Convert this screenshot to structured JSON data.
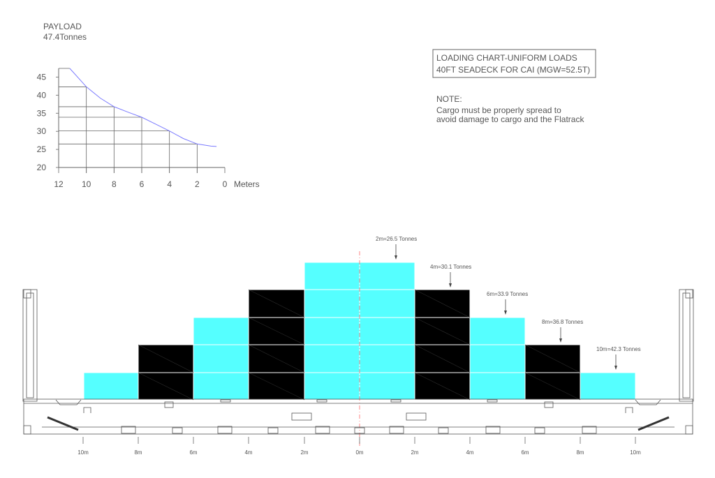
{
  "payload": {
    "title": "PAYLOAD",
    "value": "47.4Tonnes"
  },
  "title_box": {
    "line1": "LOADING CHART-UNIFORM LOADS",
    "line2": "40FT SEADECK FOR CAI (MGW=52.5T)"
  },
  "note": {
    "heading": "NOTE:",
    "line1": "Cargo must be properly spread to",
    "line2": "avoid damage to cargo and the Flatrack"
  },
  "chart_data": {
    "type": "line",
    "x_label": "Meters",
    "x_ticks": [
      "12",
      "10",
      "8",
      "6",
      "4",
      "2",
      "0"
    ],
    "y_ticks": [
      "45",
      "40",
      "35",
      "30",
      "25",
      "20"
    ],
    "xlim": [
      12,
      0
    ],
    "ylim": [
      20,
      47.4
    ],
    "series": [
      {
        "x": [
          11.2,
          10,
          9,
          8,
          7,
          6,
          5,
          4,
          3,
          2,
          1,
          0.6
        ],
        "y": [
          47.4,
          42.3,
          39.2,
          36.8,
          35.3,
          33.9,
          32.0,
          30.1,
          28.0,
          26.5,
          25.9,
          25.8
        ]
      }
    ],
    "gridlines": [
      {
        "x": 10,
        "y": 42.3
      },
      {
        "x": 8,
        "y": 36.8
      },
      {
        "x": 6,
        "y": 33.9
      },
      {
        "x": 4,
        "y": 30.1
      },
      {
        "x": 2,
        "y": 26.5
      }
    ]
  },
  "load_labels": [
    {
      "id": "2m",
      "text": "2m=26.5 Tonnes"
    },
    {
      "id": "4m",
      "text": "4m=30.1 Tonnes"
    },
    {
      "id": "6m",
      "text": "6m=33.9 Tonnes"
    },
    {
      "id": "8m",
      "text": "8m=36.8 Tonnes"
    },
    {
      "id": "10m",
      "text": "10m=42.3 Tonnes"
    }
  ],
  "bottom_scale": [
    "10m",
    "8m",
    "6m",
    "4m",
    "2m",
    "0m",
    "2m",
    "4m",
    "6m",
    "8m",
    "10m"
  ],
  "colors": {
    "cyan": "#55ffff",
    "black": "#000000",
    "curve": "#7b7bff",
    "centerline": "#ff6666",
    "line": "#666666"
  }
}
